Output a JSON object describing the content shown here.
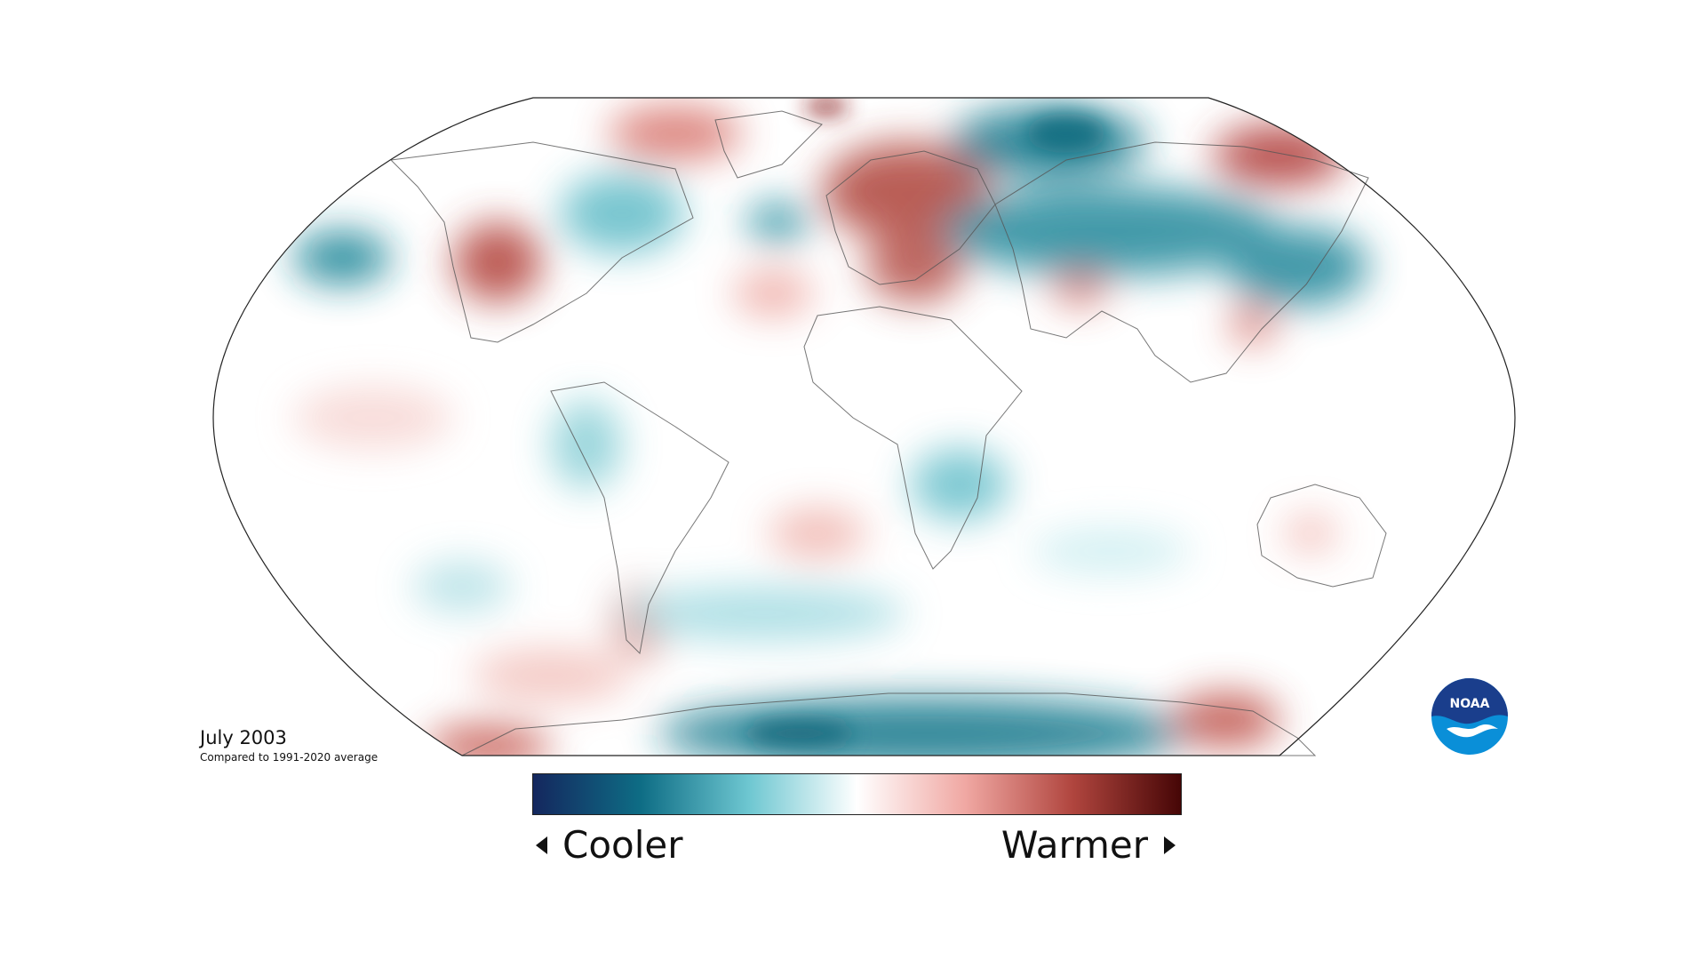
{
  "map": {
    "projection": "Robinson",
    "variable": "temperature anomaly",
    "background": "#ffffff",
    "coastline_color": "#555555",
    "anomaly_regions": [
      {
        "region": "Europe",
        "anomaly": "warmer"
      },
      {
        "region": "Western United States",
        "anomaly": "warmer"
      },
      {
        "region": "Northeast Asia / Siberia",
        "anomaly": "warmer"
      },
      {
        "region": "Greenland",
        "anomaly": "warmer"
      },
      {
        "region": "Central Siberia",
        "anomaly": "cooler"
      },
      {
        "region": "Central Asia",
        "anomaly": "cooler"
      },
      {
        "region": "North Pacific",
        "anomaly": "cooler"
      },
      {
        "region": "North Atlantic",
        "anomaly": "cooler"
      },
      {
        "region": "Antarctica",
        "anomaly": "cooler"
      },
      {
        "region": "Southern Africa",
        "anomaly": "cooler"
      },
      {
        "region": "Southern Ocean",
        "anomaly": "cooler"
      },
      {
        "region": "Patagonia",
        "anomaly": "warmer"
      },
      {
        "region": "South Atlantic",
        "anomaly": "warmer"
      }
    ]
  },
  "caption": {
    "title": "July 2003",
    "subtitle": "Compared to 1991-2020 average"
  },
  "legend": {
    "cooler_label": "Cooler",
    "warmer_label": "Warmer",
    "gradient_colors": [
      "#14275e",
      "#0e6d85",
      "#6ec7d1",
      "#ffffff",
      "#f0a8a3",
      "#b0453e",
      "#460606"
    ]
  },
  "logo": {
    "text": "NOAA",
    "colors": [
      "#1a3e8c",
      "#0a8fd8",
      "#ffffff"
    ]
  }
}
